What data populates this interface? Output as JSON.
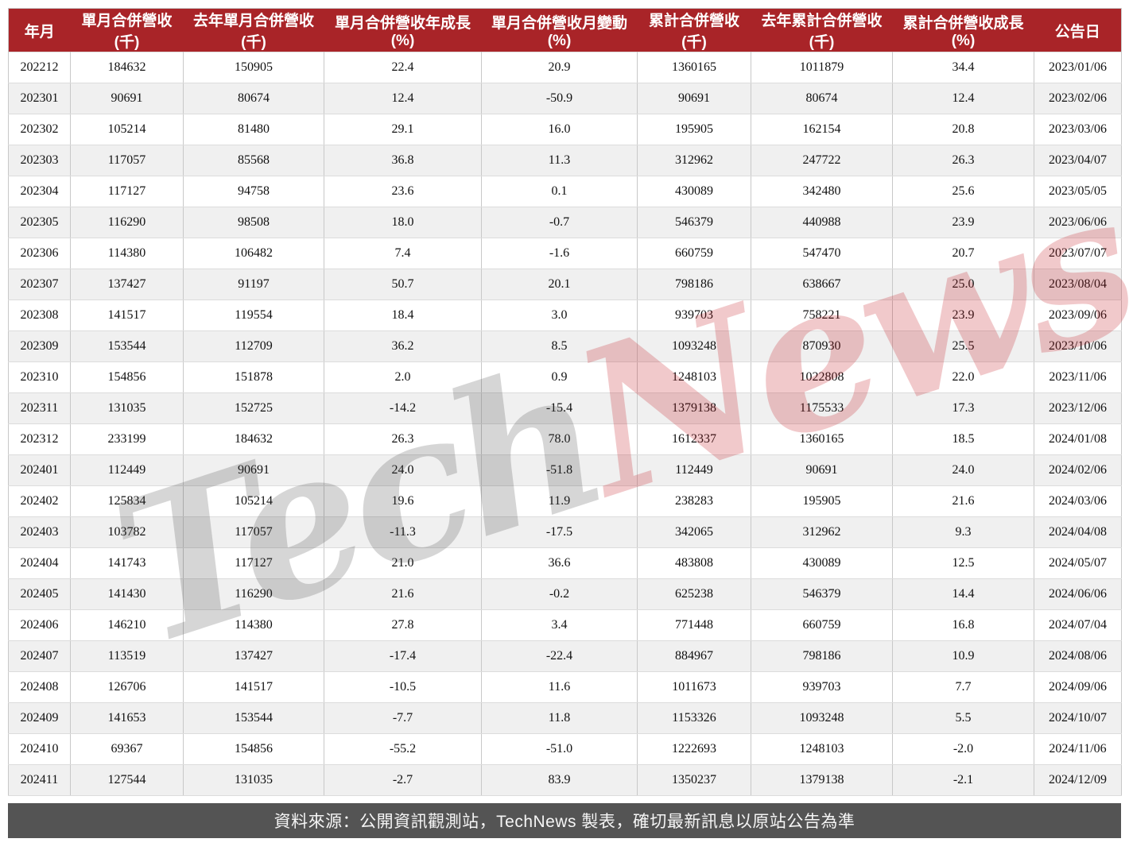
{
  "chart_data": {
    "type": "table",
    "title": "月營收統計表",
    "columns": [
      "年月",
      "單月合併營收(千)",
      "去年單月合併營收(千)",
      "單月合併營收年成長(%)",
      "單月合併營收月變動(%)",
      "累計合併營收(千)",
      "去年累計合併營收(千)",
      "累計合併營收成長(%)",
      "公告日"
    ],
    "rows": [
      [
        "202212",
        "184632",
        "150905",
        "22.4",
        "20.9",
        "1360165",
        "1011879",
        "34.4",
        "2023/01/06"
      ],
      [
        "202301",
        "90691",
        "80674",
        "12.4",
        "-50.9",
        "90691",
        "80674",
        "12.4",
        "2023/02/06"
      ],
      [
        "202302",
        "105214",
        "81480",
        "29.1",
        "16.0",
        "195905",
        "162154",
        "20.8",
        "2023/03/06"
      ],
      [
        "202303",
        "117057",
        "85568",
        "36.8",
        "11.3",
        "312962",
        "247722",
        "26.3",
        "2023/04/07"
      ],
      [
        "202304",
        "117127",
        "94758",
        "23.6",
        "0.1",
        "430089",
        "342480",
        "25.6",
        "2023/05/05"
      ],
      [
        "202305",
        "116290",
        "98508",
        "18.0",
        "-0.7",
        "546379",
        "440988",
        "23.9",
        "2023/06/06"
      ],
      [
        "202306",
        "114380",
        "106482",
        "7.4",
        "-1.6",
        "660759",
        "547470",
        "20.7",
        "2023/07/07"
      ],
      [
        "202307",
        "137427",
        "91197",
        "50.7",
        "20.1",
        "798186",
        "638667",
        "25.0",
        "2023/08/04"
      ],
      [
        "202308",
        "141517",
        "119554",
        "18.4",
        "3.0",
        "939703",
        "758221",
        "23.9",
        "2023/09/06"
      ],
      [
        "202309",
        "153544",
        "112709",
        "36.2",
        "8.5",
        "1093248",
        "870930",
        "25.5",
        "2023/10/06"
      ],
      [
        "202310",
        "154856",
        "151878",
        "2.0",
        "0.9",
        "1248103",
        "1022808",
        "22.0",
        "2023/11/06"
      ],
      [
        "202311",
        "131035",
        "152725",
        "-14.2",
        "-15.4",
        "1379138",
        "1175533",
        "17.3",
        "2023/12/06"
      ],
      [
        "202312",
        "233199",
        "184632",
        "26.3",
        "78.0",
        "1612337",
        "1360165",
        "18.5",
        "2024/01/08"
      ],
      [
        "202401",
        "112449",
        "90691",
        "24.0",
        "-51.8",
        "112449",
        "90691",
        "24.0",
        "2024/02/06"
      ],
      [
        "202402",
        "125834",
        "105214",
        "19.6",
        "11.9",
        "238283",
        "195905",
        "21.6",
        "2024/03/06"
      ],
      [
        "202403",
        "103782",
        "117057",
        "-11.3",
        "-17.5",
        "342065",
        "312962",
        "9.3",
        "2024/04/08"
      ],
      [
        "202404",
        "141743",
        "117127",
        "21.0",
        "36.6",
        "483808",
        "430089",
        "12.5",
        "2024/05/07"
      ],
      [
        "202405",
        "141430",
        "116290",
        "21.6",
        "-0.2",
        "625238",
        "546379",
        "14.4",
        "2024/06/06"
      ],
      [
        "202406",
        "146210",
        "114380",
        "27.8",
        "3.4",
        "771448",
        "660759",
        "16.8",
        "2024/07/04"
      ],
      [
        "202407",
        "113519",
        "137427",
        "-17.4",
        "-22.4",
        "884967",
        "798186",
        "10.9",
        "2024/08/06"
      ],
      [
        "202408",
        "126706",
        "141517",
        "-10.5",
        "11.6",
        "1011673",
        "939703",
        "7.7",
        "2024/09/06"
      ],
      [
        "202409",
        "141653",
        "153544",
        "-7.7",
        "11.8",
        "1153326",
        "1093248",
        "5.5",
        "2024/10/07"
      ],
      [
        "202410",
        "69367",
        "154856",
        "-55.2",
        "-51.0",
        "1222693",
        "1248103",
        "-2.0",
        "2024/11/06"
      ],
      [
        "202411",
        "127544",
        "131035",
        "-2.7",
        "83.9",
        "1350237",
        "1379138",
        "-2.1",
        "2024/12/09"
      ]
    ]
  },
  "watermark": {
    "part_gray": "Tech",
    "part_red": "News"
  },
  "footer": {
    "source_text": "資料來源：公開資訊觀測站，TechNews 製表，確切最新訊息以原站公告為準"
  },
  "colors": {
    "header_bg": "#a92428",
    "row_alt_bg": "#f0f0f0",
    "footer_bg": "#545454",
    "watermark_red": "rgba(198,30,36,0.24)",
    "watermark_gray": "rgba(70,70,70,0.22)"
  }
}
